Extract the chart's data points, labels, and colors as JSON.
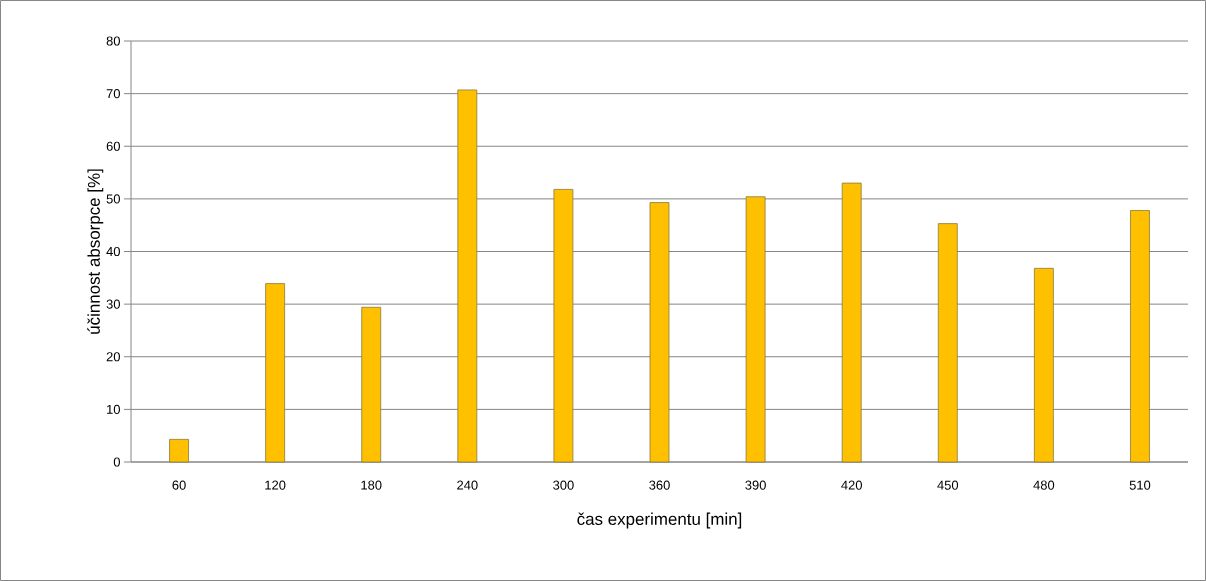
{
  "chart_data": {
    "type": "bar",
    "xlabel": "čas experimentu [min]",
    "ylabel": "účinnost absorpce [%]",
    "categories": [
      "60",
      "120",
      "180",
      "240",
      "300",
      "360",
      "390",
      "420",
      "450",
      "480",
      "510"
    ],
    "values": [
      4.3,
      33.9,
      29.4,
      70.7,
      51.8,
      49.3,
      50.4,
      53.0,
      45.3,
      36.8,
      47.8
    ],
    "color": "#ffc000",
    "ylim": [
      0,
      80
    ],
    "yticks": [
      0,
      10,
      20,
      30,
      40,
      50,
      60,
      70,
      80
    ],
    "grid": "y"
  }
}
